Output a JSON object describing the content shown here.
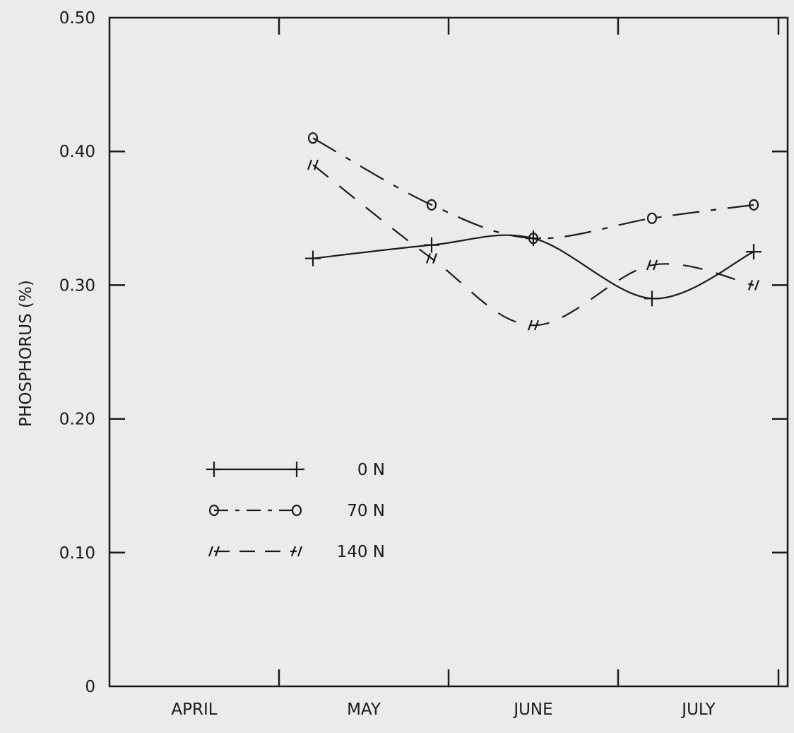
{
  "chart_data": {
    "type": "line",
    "title": "",
    "xlabel": "",
    "ylabel": "PHOSPHORUS (%)",
    "ylim": [
      0,
      0.5
    ],
    "y_ticks": [
      "0",
      "0.10",
      "0.20",
      "0.30",
      "0.40",
      "0.50"
    ],
    "x_categories": [
      "APRIL",
      "MAY",
      "JUNE",
      "JULY"
    ],
    "x_unit": "month index (0 = start of APRIL, 4 = end of JULY)",
    "grid": false,
    "legend_position": "lower-left",
    "series": [
      {
        "name": "0 N",
        "marker": "plus",
        "line_style": "solid",
        "x": [
          1.2,
          1.9,
          2.5,
          3.2,
          3.8
        ],
        "values": [
          0.32,
          0.33,
          0.335,
          0.29,
          0.325
        ]
      },
      {
        "name": "70 N",
        "marker": "circle",
        "line_style": "dash-dot",
        "x": [
          1.2,
          1.9,
          2.5,
          3.2,
          3.8
        ],
        "values": [
          0.41,
          0.36,
          0.335,
          0.35,
          0.36
        ]
      },
      {
        "name": "140 N",
        "marker": "double-slash",
        "line_style": "dashed",
        "x": [
          1.2,
          1.9,
          2.5,
          3.2,
          3.8
        ],
        "values": [
          0.39,
          0.32,
          0.27,
          0.315,
          0.3
        ]
      }
    ]
  }
}
